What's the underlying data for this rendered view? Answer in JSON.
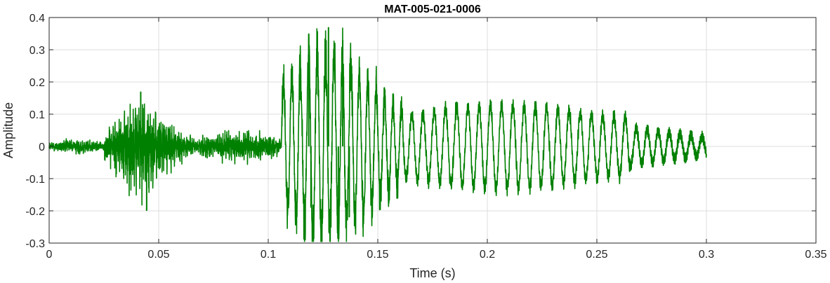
{
  "chart_data": {
    "type": "line",
    "title": "MAT-005-021-0006",
    "xlabel": "Time (s)",
    "ylabel": "Amplitude",
    "xlim": [
      0,
      0.35
    ],
    "ylim": [
      -0.3,
      0.4
    ],
    "x_ticks": [
      0,
      0.05,
      0.1,
      0.15,
      0.2,
      0.25,
      0.3,
      0.35
    ],
    "x_tick_labels": [
      "0",
      "0.05",
      "0.1",
      "0.15",
      "0.2",
      "0.25",
      "0.3",
      "0.35"
    ],
    "y_ticks": [
      -0.3,
      -0.2,
      -0.1,
      0,
      0.1,
      0.2,
      0.3,
      0.4
    ],
    "y_tick_labels": [
      "-0.3",
      "-0.2",
      "-0.1",
      "0",
      "0.1",
      "0.2",
      "0.3",
      "0.4"
    ],
    "grid": true,
    "colors": {
      "line": "#008000",
      "grid": "#dcdcdc",
      "axis": "#262626"
    },
    "series": [
      {
        "signal_end": 0.3,
        "segments": [
          {
            "t_start": 0.0,
            "t_end": 0.025,
            "kind": "noise",
            "envelope_max": 0.03
          },
          {
            "t_start": 0.025,
            "t_end": 0.065,
            "kind": "burst",
            "envelope_max": 0.17,
            "peak_time": 0.042
          },
          {
            "t_start": 0.065,
            "t_end": 0.106,
            "kind": "noise",
            "envelope_max": 0.06
          },
          {
            "t_start": 0.106,
            "t_end": 0.162,
            "kind": "oscillation",
            "frequency_hz": 260,
            "envelope_max": 0.37,
            "peak_time": 0.127
          },
          {
            "t_start": 0.162,
            "t_end": 0.265,
            "kind": "oscillation",
            "frequency_hz": 195,
            "envelope_max": 0.13
          },
          {
            "t_start": 0.265,
            "t_end": 0.3,
            "kind": "oscillation",
            "frequency_hz": 200,
            "envelope_max": 0.04
          }
        ],
        "peaks": [
          {
            "x": 0.0418,
            "y": 0.17
          },
          {
            "x": 0.0445,
            "y": -0.2
          },
          {
            "x": 0.1185,
            "y": 0.35
          },
          {
            "x": 0.1195,
            "y": -0.19
          },
          {
            "x": 0.1275,
            "y": 0.37
          },
          {
            "x": 0.132,
            "y": -0.24
          },
          {
            "x": 0.134,
            "y": 0.33
          },
          {
            "x": 0.137,
            "y": -0.22
          }
        ]
      }
    ]
  }
}
